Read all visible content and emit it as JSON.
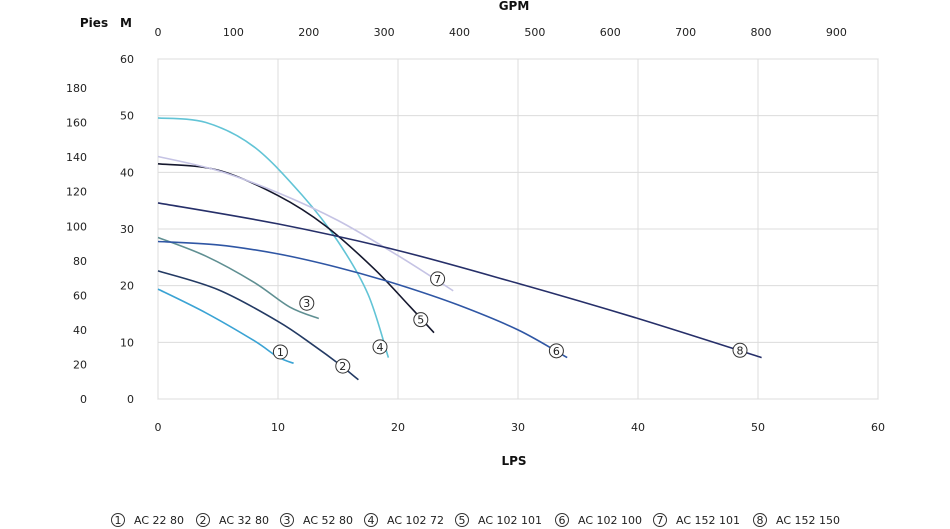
{
  "chart_data": {
    "type": "line",
    "title": "",
    "axes": {
      "x_bottom": {
        "label": "LPS",
        "min": 0,
        "max": 60,
        "ticks": [
          0,
          10,
          20,
          30,
          40,
          50,
          60
        ]
      },
      "x_top": {
        "label": "GPM",
        "ticks": [
          0,
          100,
          200,
          300,
          400,
          500,
          600,
          700,
          800,
          900
        ]
      },
      "y_meters": {
        "label": "M",
        "min": 0,
        "max": 60,
        "ticks": [
          0,
          10,
          20,
          30,
          40,
          50,
          60
        ]
      },
      "y_feet": {
        "label": "Pies",
        "ticks": [
          0,
          20,
          40,
          60,
          80,
          100,
          120,
          140,
          160,
          180
        ]
      }
    },
    "grid": true,
    "legend_position": "bottom",
    "series": [
      {
        "marker": "1",
        "name": "AC 22 80",
        "color": "#3aa3d4",
        "x": [
          0,
          4,
          8,
          10,
          11.3
        ],
        "y": [
          19.4,
          15.2,
          10.3,
          7.4,
          6.3
        ],
        "label_at": [
          10.2,
          8.3
        ]
      },
      {
        "marker": "2",
        "name": "AC 32 80",
        "color": "#233a63",
        "x": [
          0,
          5,
          10,
          13,
          15,
          16.7
        ],
        "y": [
          22.6,
          19.3,
          13.7,
          9.4,
          6.3,
          3.4
        ],
        "label_at": [
          15.4,
          5.8
        ]
      },
      {
        "marker": "3",
        "name": "AC 52 80",
        "color": "#5f8f92",
        "x": [
          0,
          4,
          8,
          11,
          13.4
        ],
        "y": [
          28.5,
          25.2,
          20.6,
          16.2,
          14.2
        ],
        "label_at": [
          12.4,
          16.9
        ]
      },
      {
        "marker": "4",
        "name": "AC 102 72",
        "color": "#62c4d6",
        "x": [
          0,
          4,
          8,
          12,
          15,
          17.5,
          19.2
        ],
        "y": [
          49.6,
          48.8,
          44.5,
          36.0,
          27.8,
          18.5,
          7.3
        ],
        "label_at": [
          18.5,
          9.2
        ]
      },
      {
        "marker": "5",
        "name": "AC 102 101",
        "color": "#15182e",
        "x": [
          0,
          5,
          10,
          14,
          18,
          21,
          23
        ],
        "y": [
          41.5,
          40.4,
          35.9,
          30.5,
          23.0,
          16.3,
          11.7
        ],
        "label_at": [
          21.9,
          14.0
        ]
      },
      {
        "marker": "6",
        "name": "AC 102 100",
        "color": "#2f56a4",
        "x": [
          0,
          5,
          10,
          15,
          20,
          25,
          30,
          34.1
        ],
        "y": [
          27.8,
          27.2,
          25.6,
          23.2,
          20.2,
          16.6,
          12.2,
          7.3
        ],
        "label_at": [
          33.2,
          8.5
        ]
      },
      {
        "marker": "7",
        "name": "AC 152 101",
        "color": "#c5c3e4",
        "x": [
          0,
          5,
          10,
          15,
          20,
          24.6
        ],
        "y": [
          42.8,
          40.3,
          36.4,
          31.5,
          25.3,
          19.1
        ],
        "label_at": [
          23.3,
          21.2
        ]
      },
      {
        "marker": "8",
        "name": "AC 152 150",
        "color": "#262f69",
        "x": [
          0,
          10,
          20,
          30,
          40,
          50.3
        ],
        "y": [
          34.6,
          30.9,
          26.2,
          20.4,
          14.2,
          7.3
        ],
        "label_at": [
          48.5,
          8.6
        ]
      }
    ]
  }
}
